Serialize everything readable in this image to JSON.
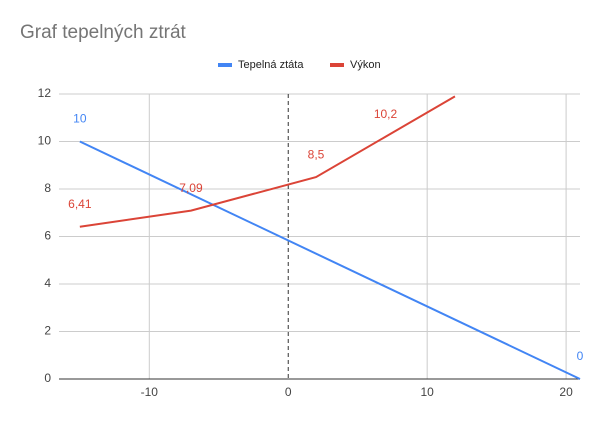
{
  "chart_data": {
    "type": "line",
    "title": "Graf tepelných ztrát",
    "series": [
      {
        "name": "Tepelná ztáta",
        "color": "#4285f4",
        "x": [
          -15,
          21
        ],
        "values": [
          10,
          0
        ],
        "value_labels": [
          "10",
          "0"
        ]
      },
      {
        "name": "Výkon",
        "color": "#db4437",
        "x": [
          -15,
          -7,
          2,
          7,
          12
        ],
        "values": [
          6.41,
          7.09,
          8.5,
          10.2,
          11.9
        ],
        "value_labels": [
          "6,41",
          "7,09",
          "8,5",
          "10,2",
          null
        ]
      }
    ],
    "xlim": [
      -16.5,
      21
    ],
    "xticks": [
      -10,
      0,
      10,
      20
    ],
    "ylim": [
      0,
      12
    ],
    "yticks": [
      0,
      2,
      4,
      6,
      8,
      10,
      12
    ],
    "grid": true,
    "legend": "top"
  }
}
